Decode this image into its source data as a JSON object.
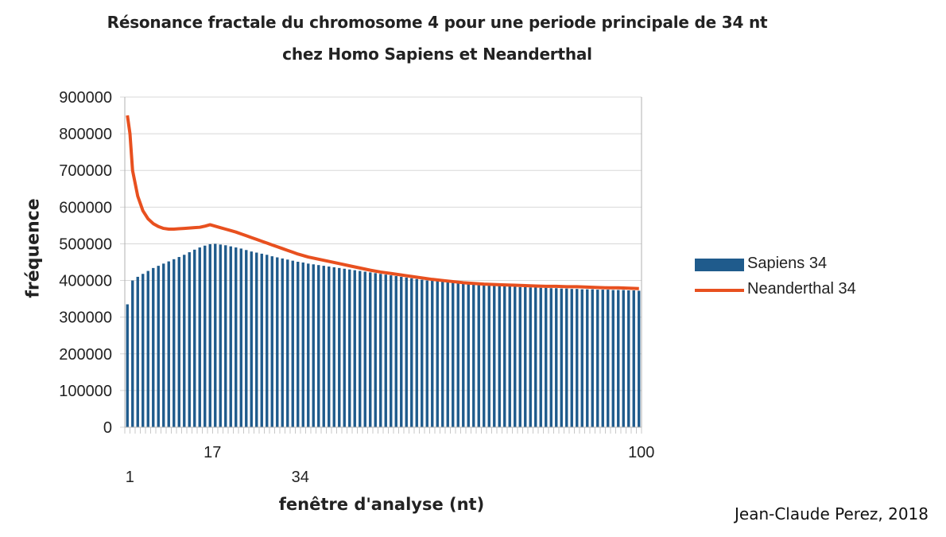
{
  "header": {
    "title_line1": "Résonance fractale du chromosome 4  pour une periode principale de 34 nt",
    "title_line2": "chez Homo Sapiens et Neanderthal"
  },
  "footer": {
    "credit": "Jean-Claude Perez, 2018"
  },
  "colors": {
    "sapiens": "#1f5b8c",
    "neanderthal": "#e8501f",
    "grid": "#d8d8d8"
  },
  "chart_data": {
    "type": "bar+line",
    "xlabel": "fenêtre d'analyse (nt)",
    "ylabel": "fréquence",
    "ylim": [
      0,
      900000
    ],
    "yticks": [
      "0",
      "100000",
      "200000",
      "300000",
      "400000",
      "500000",
      "600000",
      "700000",
      "800000",
      "900000"
    ],
    "xtick_labels": [
      {
        "value": 1,
        "label": "1"
      },
      {
        "value": 17,
        "label": "17"
      },
      {
        "value": 34,
        "label": "34"
      },
      {
        "value": 100,
        "label": "100"
      }
    ],
    "grid": true,
    "legend_position": "right",
    "series": [
      {
        "name": "Sapiens 34",
        "type": "bar",
        "x": [
          1,
          2,
          3,
          4,
          5,
          6,
          7,
          8,
          9,
          10,
          11,
          12,
          13,
          14,
          15,
          16,
          17,
          18,
          19,
          20,
          21,
          22,
          23,
          24,
          25,
          26,
          27,
          28,
          29,
          30,
          31,
          32,
          33,
          34,
          35,
          36,
          37,
          38,
          39,
          40,
          41,
          42,
          43,
          44,
          45,
          46,
          47,
          48,
          49,
          50,
          51,
          52,
          53,
          54,
          55,
          56,
          57,
          58,
          59,
          60,
          61,
          62,
          63,
          64,
          65,
          66,
          67,
          68,
          69,
          70,
          71,
          72,
          73,
          74,
          75,
          76,
          77,
          78,
          79,
          80,
          81,
          82,
          83,
          84,
          85,
          86,
          87,
          88,
          89,
          90,
          91,
          92,
          93,
          94,
          95,
          96,
          97,
          98,
          99,
          100
        ],
        "values": [
          335000,
          400000,
          410000,
          418000,
          426000,
          434000,
          440000,
          446000,
          452000,
          458000,
          464000,
          470000,
          477000,
          484000,
          490000,
          495000,
          499000,
          500000,
          498000,
          496000,
          493000,
          490000,
          487000,
          483000,
          479000,
          476000,
          473000,
          470000,
          466000,
          463000,
          460000,
          457000,
          454000,
          451000,
          449000,
          446000,
          444000,
          442000,
          440000,
          438000,
          436000,
          434000,
          432000,
          430000,
          428000,
          426000,
          424000,
          422000,
          420000,
          418000,
          416000,
          414000,
          412000,
          410000,
          408000,
          406000,
          404000,
          402000,
          400000,
          399000,
          398000,
          397000,
          396000,
          395000,
          394000,
          393000,
          392000,
          391000,
          390000,
          389000,
          388000,
          387000,
          386000,
          385000,
          384000,
          383000,
          382000,
          382000,
          381000,
          381000,
          380000,
          380000,
          379000,
          379000,
          378000,
          378000,
          377000,
          377000,
          376000,
          376000,
          376000,
          375000,
          375000,
          375000,
          374000,
          374000,
          374000,
          373000,
          373000,
          372000
        ]
      },
      {
        "name": "Neanderthal 34",
        "type": "line",
        "x": [
          1,
          1.5,
          2,
          3,
          4,
          5,
          6,
          7,
          8,
          9,
          10,
          11,
          12,
          13,
          14,
          15,
          16,
          17,
          18,
          19,
          20,
          21,
          22,
          23,
          24,
          25,
          26,
          27,
          28,
          29,
          30,
          31,
          32,
          33,
          34,
          35,
          36,
          37,
          38,
          39,
          40,
          42,
          44,
          46,
          48,
          50,
          52,
          54,
          56,
          58,
          60,
          62,
          64,
          66,
          68,
          70,
          72,
          74,
          76,
          78,
          80,
          82,
          84,
          86,
          88,
          90,
          92,
          94,
          96,
          98,
          100
        ],
        "values": [
          850000,
          800000,
          700000,
          630000,
          590000,
          568000,
          555000,
          547000,
          542000,
          540000,
          540000,
          541000,
          542000,
          543000,
          544000,
          545000,
          548000,
          552000,
          548000,
          544000,
          540000,
          536000,
          532000,
          527000,
          522000,
          517000,
          512000,
          507000,
          502000,
          497000,
          492000,
          487000,
          482000,
          477000,
          472000,
          468000,
          464000,
          461000,
          458000,
          455000,
          452000,
          446000,
          440000,
          434000,
          428000,
          423000,
          419000,
          415000,
          411000,
          407000,
          403000,
          400000,
          397000,
          394000,
          392000,
          390000,
          389000,
          388000,
          387000,
          386000,
          385000,
          384000,
          384000,
          383000,
          383000,
          382000,
          381000,
          380000,
          380000,
          379000,
          378000
        ]
      }
    ]
  }
}
